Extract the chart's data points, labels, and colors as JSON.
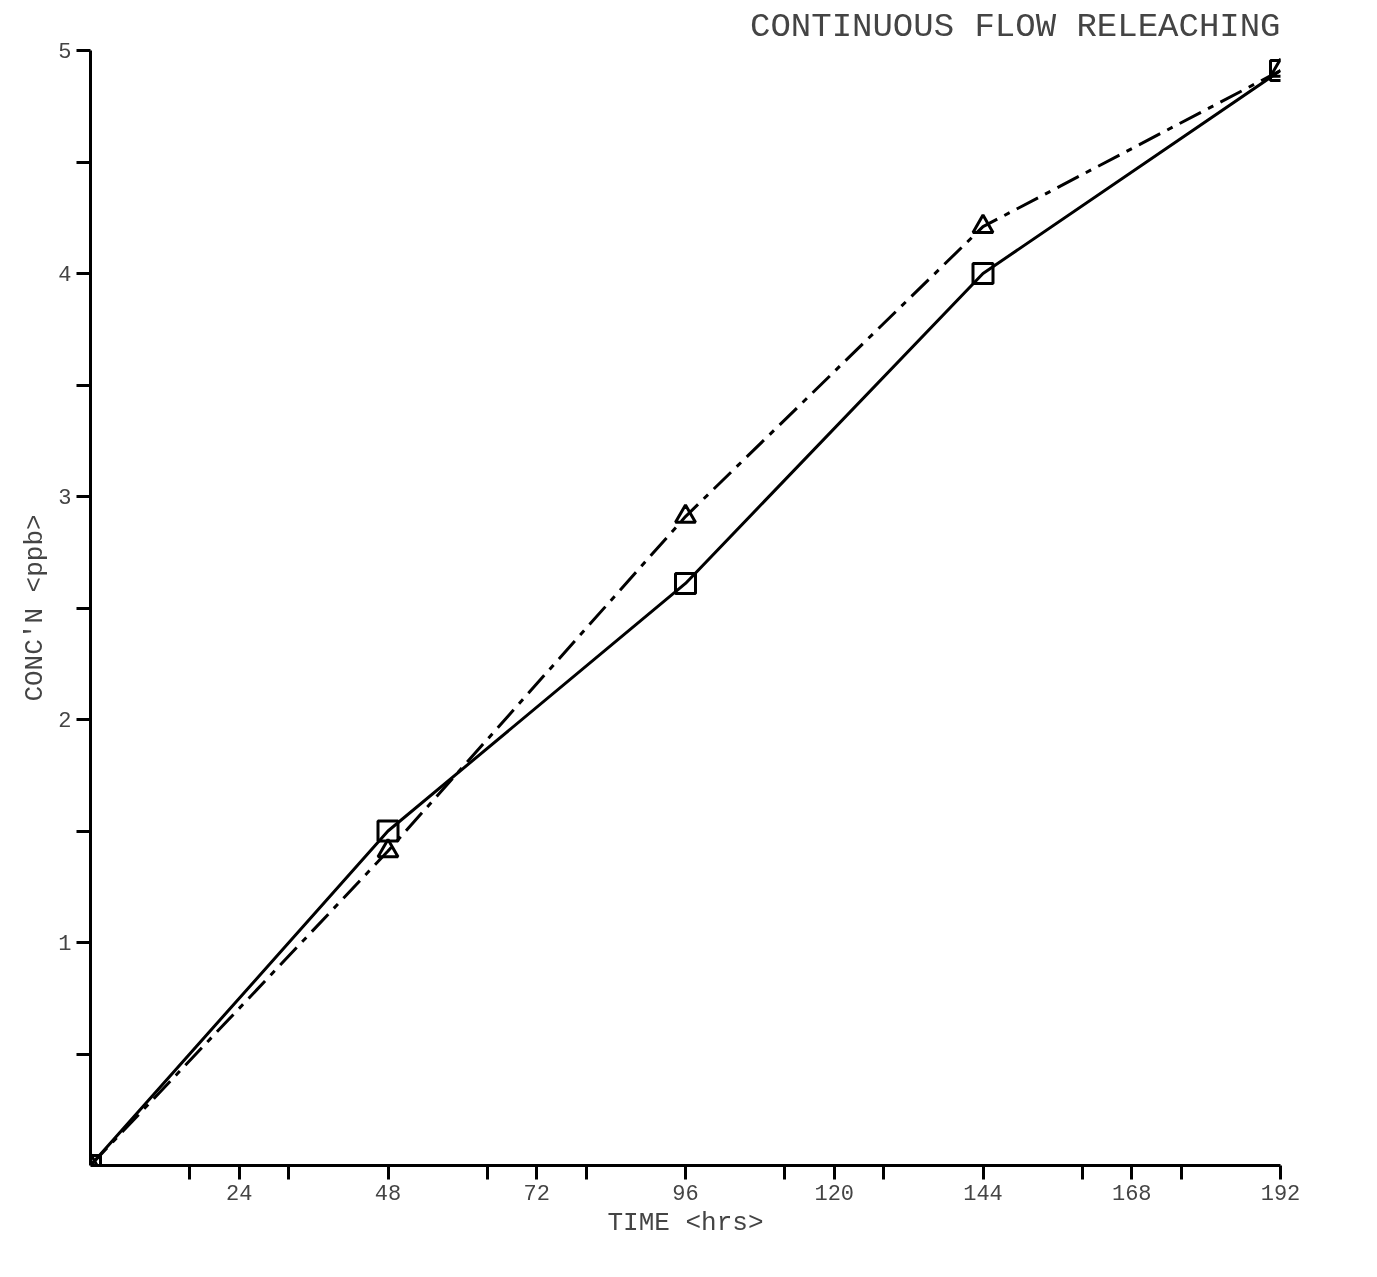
{
  "chart_data": {
    "type": "line",
    "title": "CONTINUOUS FLOW RELEACHING",
    "xlabel": "TIME <hrs>",
    "ylabel": "CONC'N <ppb>",
    "x": [
      0,
      48,
      96,
      144,
      192
    ],
    "series": [
      {
        "color": "#000000",
        "values": [
          0,
          1.5,
          2.61,
          4.0,
          4.91
        ],
        "marker": "square",
        "line_style": "solid"
      },
      {
        "color": "#000000",
        "values": [
          0,
          1.41,
          2.91,
          4.21,
          4.91
        ],
        "marker": "triangle",
        "line_style": "dashed"
      }
    ],
    "xlim": [
      0,
      192
    ],
    "ylim": [
      0,
      5
    ],
    "xticks": [
      {
        "value": 16,
        "label": null
      },
      24,
      {
        "value": 32,
        "label": null
      },
      48,
      {
        "value": 64,
        "label": null
      },
      72,
      {
        "value": 80,
        "label": null
      },
      96,
      {
        "value": 112,
        "label": null
      },
      120,
      {
        "value": 128,
        "label": null
      },
      144,
      {
        "value": 160,
        "label": null
      },
      168,
      {
        "value": 176,
        "label": null
      },
      192
    ],
    "yticks": [
      {
        "value": 0.5,
        "label": null
      },
      1,
      {
        "value": 1.5,
        "label": null
      },
      2,
      {
        "value": 2.5,
        "label": null
      },
      3,
      {
        "value": 3.5,
        "label": null
      },
      4,
      {
        "value": 4.5,
        "label": null
      },
      5
    ],
    "grid": false
  }
}
